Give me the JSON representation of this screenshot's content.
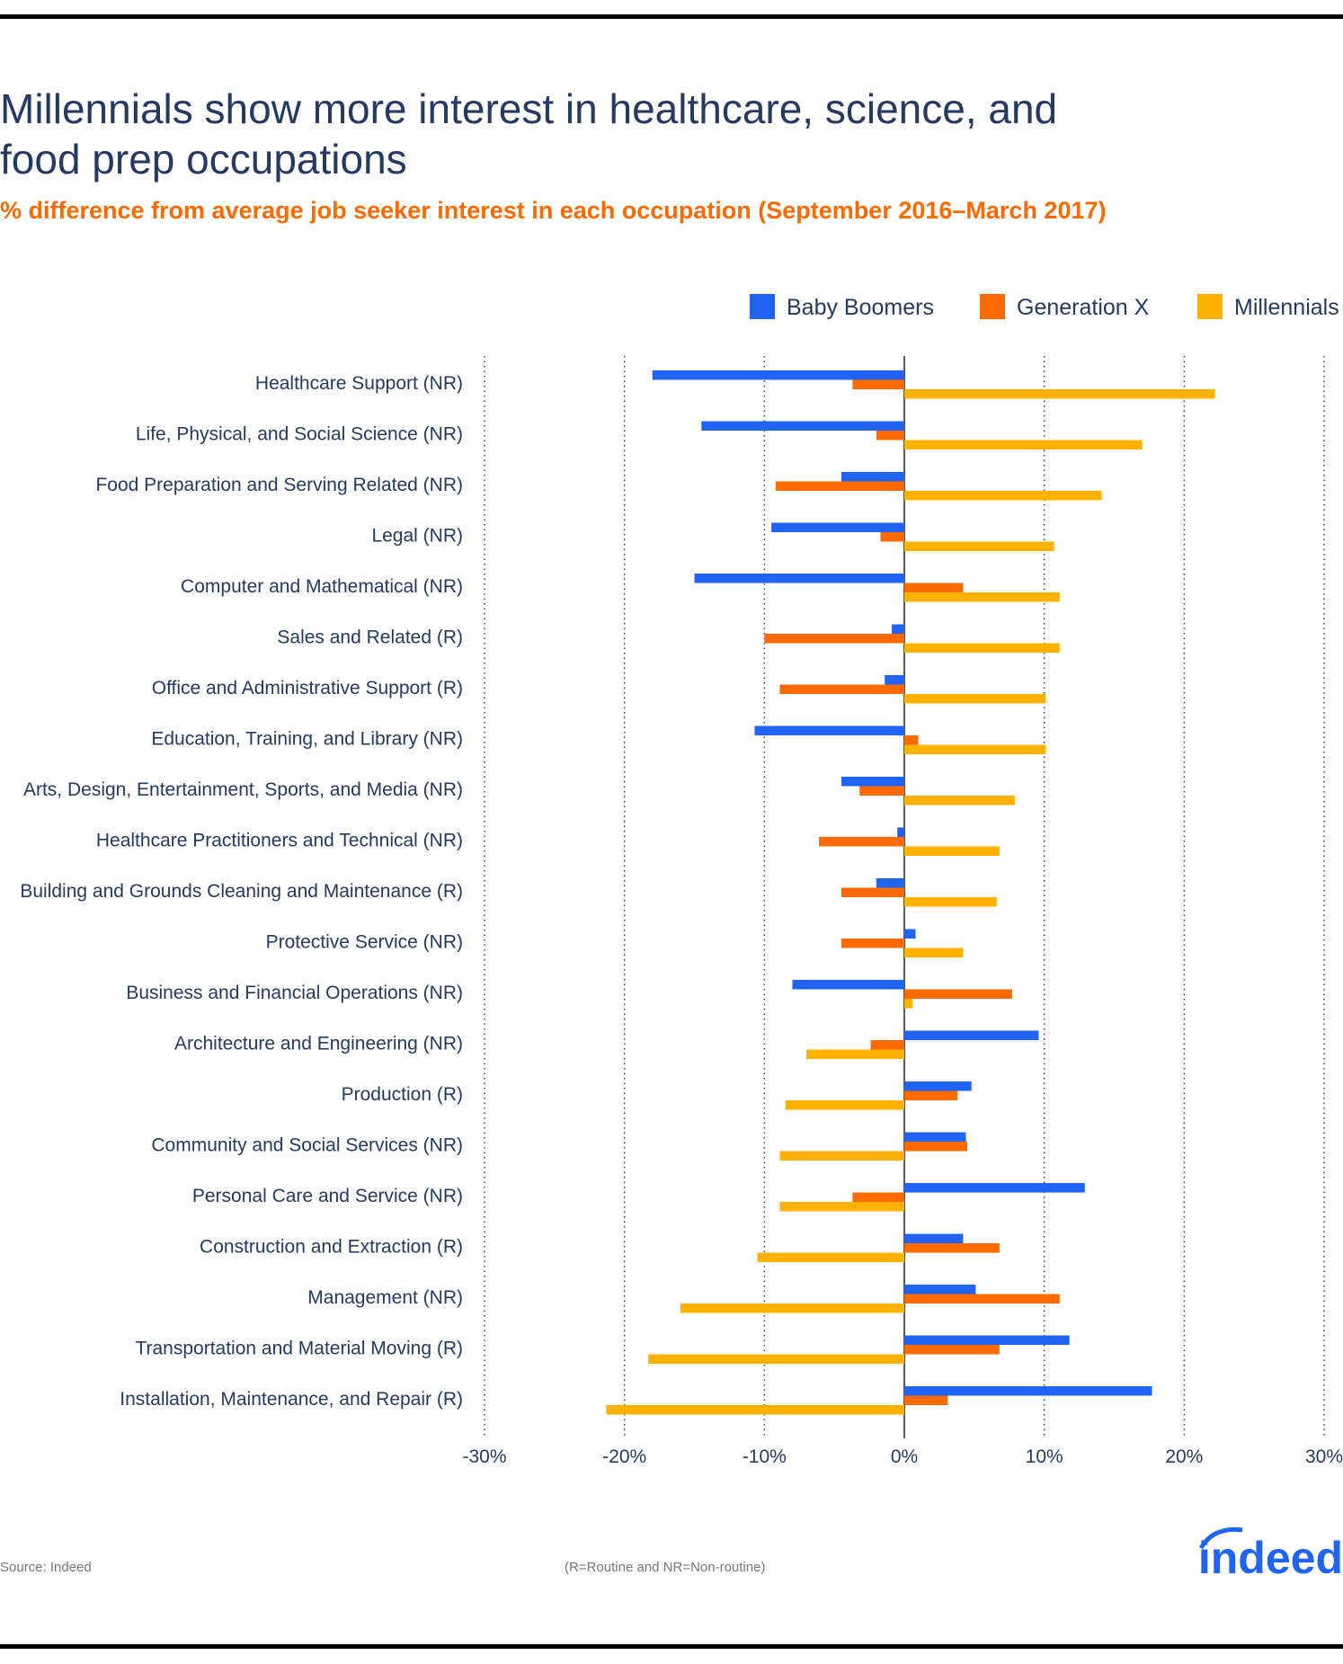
{
  "chart_data": {
    "type": "bar",
    "orientation": "horizontal",
    "title": "Millennials show more interest in healthcare, science, and food prep occupations",
    "title_lines": [
      "Millennials show more interest in healthcare, science, and",
      "food prep occupations"
    ],
    "subtitle": "% difference from average job seeker interest in each occupation (September 2016–March 2017)",
    "xlim": [
      -30,
      30
    ],
    "xticks": [
      -30,
      -20,
      -10,
      0,
      10,
      20,
      30
    ],
    "xtick_labels": [
      "-30%",
      "-20%",
      "-10%",
      "0%",
      "10%",
      "20%",
      "30%"
    ],
    "grid": "vertical dotted",
    "legend_position": "top-right",
    "categories": [
      "Healthcare Support (NR)",
      "Life, Physical, and Social Science (NR)",
      "Food Preparation and Serving Related (NR)",
      "Legal (NR)",
      "Computer and Mathematical (NR)",
      "Sales and Related (R)",
      "Office and Administrative Support (R)",
      "Education, Training, and Library (NR)",
      "Arts, Design, Entertainment, Sports, and Media (NR)",
      "Healthcare Practitioners and Technical (NR)",
      "Building and Grounds Cleaning and Maintenance (R)",
      "Protective Service (NR)",
      "Business and Financial Operations (NR)",
      "Architecture and Engineering (NR)",
      "Production (R)",
      "Community and Social Services (NR)",
      "Personal Care and Service (NR)",
      "Construction and Extraction (R)",
      "Management (NR)",
      "Transportation and Material Moving (R)",
      "Installation, Maintenance, and Repair (R)"
    ],
    "series": [
      {
        "name": "Baby Boomers",
        "color": "#2164f3",
        "values": [
          -18.0,
          -14.5,
          -4.5,
          -9.5,
          -15.0,
          -0.9,
          -1.4,
          -10.7,
          -4.5,
          -0.5,
          -2.0,
          0.8,
          -8.0,
          9.6,
          4.8,
          4.4,
          12.9,
          4.2,
          5.1,
          11.8,
          17.7
        ]
      },
      {
        "name": "Generation X",
        "color": "#ff6a00",
        "values": [
          -3.7,
          -2.0,
          -9.2,
          -1.7,
          4.2,
          -10.0,
          -8.9,
          1.0,
          -3.2,
          -6.1,
          -4.5,
          -4.5,
          7.7,
          -2.4,
          3.8,
          4.5,
          -3.7,
          6.8,
          11.1,
          6.8,
          3.1
        ]
      },
      {
        "name": "Millennials",
        "color": "#ffb100",
        "values": [
          22.2,
          17.0,
          14.1,
          10.7,
          11.1,
          11.1,
          10.1,
          10.1,
          7.9,
          6.8,
          6.6,
          4.2,
          0.6,
          -7.0,
          -8.5,
          -8.9,
          -8.9,
          -10.5,
          -16.0,
          -18.3,
          -21.3
        ]
      }
    ]
  },
  "footer": {
    "source": "Source: Indeed",
    "note": "(R=Routine and NR=Non-routine)",
    "logo": "indeed"
  }
}
